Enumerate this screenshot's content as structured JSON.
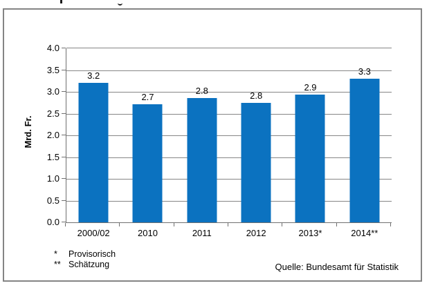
{
  "chart_data": {
    "type": "bar",
    "title": "",
    "categories": [
      "2000/02",
      "2010",
      "2011",
      "2012",
      "2013*",
      "2014**"
    ],
    "values": [
      3.2,
      2.7,
      2.8,
      2.8,
      2.9,
      3.3
    ],
    "values_precise": [
      3.2,
      2.72,
      2.85,
      2.75,
      2.93,
      3.3
    ],
    "bar_labels": [
      "3.2",
      "2.7",
      "2.8",
      "2.8",
      "2.9",
      "3.3"
    ],
    "xlabel": "",
    "ylabel": "Mrd. Fr.",
    "ylim": [
      0,
      4.0
    ],
    "ytick_step": 0.5,
    "yticks": [
      "4.0",
      "3.5",
      "3.0",
      "2.5",
      "2.0",
      "1.5",
      "1.0",
      "0.5",
      "0.0"
    ],
    "grid": true,
    "legend": "none",
    "bar_color": "#0b72c0",
    "grid_color": "#858585",
    "axis_color": "#6f6f6f",
    "frame_border_color": "#848484"
  },
  "footnotes": [
    {
      "marker": "*",
      "text": "Provisorisch"
    },
    {
      "marker": "**",
      "text": "Schätzung"
    }
  ],
  "source": "Quelle: Bundesamt für Statistik"
}
